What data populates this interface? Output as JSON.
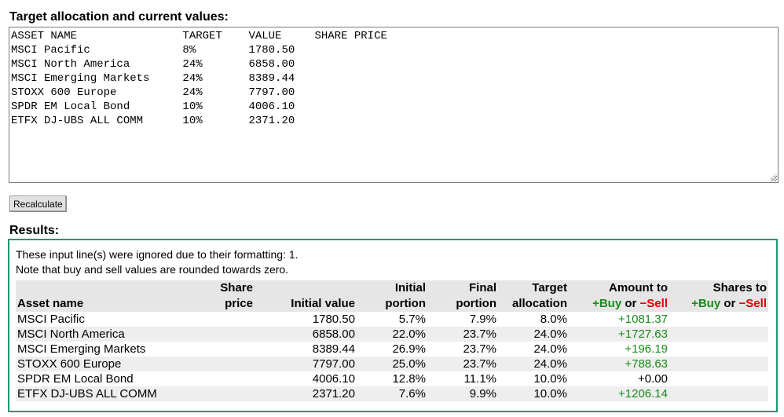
{
  "input": {
    "heading": "Target allocation and current values:",
    "textarea_value": "ASSET NAME                TARGET    VALUE     SHARE PRICE\nMSCI Pacific              8%        1780.50\nMSCI North America        24%       6858.00\nMSCI Emerging Markets     24%       8389.44\nSTOXX 600 Europe          24%       7797.00\nSPDR EM Local Bond        10%       4006.10\nETFX DJ-UBS ALL COMM      10%       2371.20"
  },
  "recalculate_label": "Recalculate",
  "results": {
    "heading": "Results:",
    "note_ignored": "These input line(s) were ignored due to their formatting: 1.",
    "note_rounding": "Note that buy and sell values are rounded towards zero.",
    "headers": {
      "asset_name": "Asset name",
      "share_price_line1": "Share",
      "share_price_line2": "price",
      "initial_value": "Initial value",
      "initial_portion_line1": "Initial",
      "initial_portion_line2": "portion",
      "final_portion_line1": "Final",
      "final_portion_line2": "portion",
      "target_allocation_line1": "Target",
      "target_allocation_line2": "allocation",
      "amount_line1": "Amount to",
      "shares_line1": "Shares to",
      "buy": "+Buy",
      "or": " or ",
      "sell": "−Sell"
    },
    "rows": [
      {
        "name": "MSCI Pacific",
        "share_price": "",
        "initial_value": "1780.50",
        "initial_portion": "5.7%",
        "final_portion": "7.9%",
        "target": "8.0%",
        "amount": "+1081.37",
        "amount_class": "pos",
        "shares": ""
      },
      {
        "name": "MSCI North America",
        "share_price": "",
        "initial_value": "6858.00",
        "initial_portion": "22.0%",
        "final_portion": "23.7%",
        "target": "24.0%",
        "amount": "+1727.63",
        "amount_class": "pos",
        "shares": ""
      },
      {
        "name": "MSCI Emerging Markets",
        "share_price": "",
        "initial_value": "8389.44",
        "initial_portion": "26.9%",
        "final_portion": "23.7%",
        "target": "24.0%",
        "amount": "+196.19",
        "amount_class": "pos",
        "shares": ""
      },
      {
        "name": "STOXX 600 Europe",
        "share_price": "",
        "initial_value": "7797.00",
        "initial_portion": "25.0%",
        "final_portion": "23.7%",
        "target": "24.0%",
        "amount": "+788.63",
        "amount_class": "pos",
        "shares": ""
      },
      {
        "name": "SPDR EM Local Bond",
        "share_price": "",
        "initial_value": "4006.10",
        "initial_portion": "12.8%",
        "final_portion": "11.1%",
        "target": "10.0%",
        "amount": "+0.00",
        "amount_class": "zero",
        "shares": ""
      },
      {
        "name": "ETFX DJ-UBS ALL COMM",
        "share_price": "",
        "initial_value": "2371.20",
        "initial_portion": "7.6%",
        "final_portion": "9.9%",
        "target": "10.0%",
        "amount": "+1206.14",
        "amount_class": "pos",
        "shares": ""
      }
    ]
  },
  "colors": {
    "results_border": "#1a9a6e",
    "buy": "#1a8a1a",
    "sell": "#e00000"
  }
}
